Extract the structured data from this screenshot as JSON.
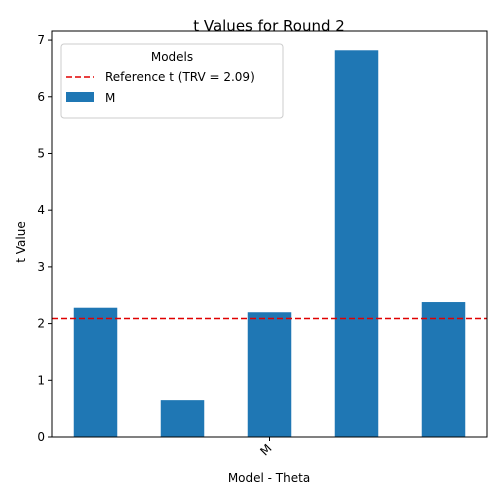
{
  "chart_data": {
    "type": "bar",
    "title": "t Values for Round 2",
    "xlabel": "Model - Theta",
    "ylabel": "t Value",
    "x_tick_labels": [
      "M"
    ],
    "x_tick_index": 2,
    "values": [
      2.28,
      0.65,
      2.2,
      6.82,
      2.38
    ],
    "ylim": [
      0,
      7.16
    ],
    "yticks": [
      0,
      1,
      2,
      3,
      4,
      5,
      6,
      7
    ],
    "reference_line": {
      "value": 2.09,
      "label": "Reference t (TRV = 2.09)",
      "color": "#e00000",
      "style": "dashed"
    },
    "series": [
      {
        "name": "M",
        "color": "#1f77b4"
      }
    ],
    "legend": {
      "title": "Models",
      "placement": "top-left"
    },
    "grid": false
  }
}
